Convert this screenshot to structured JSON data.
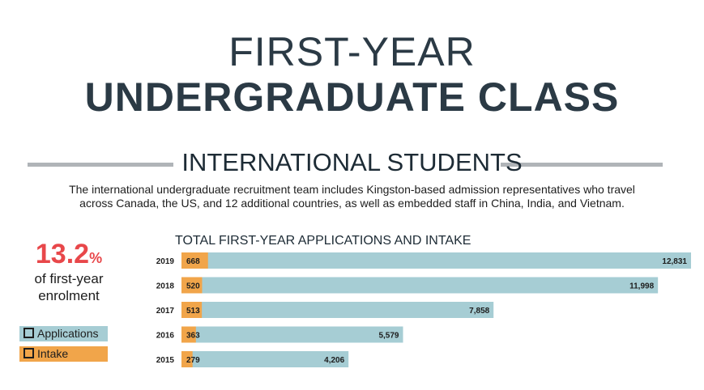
{
  "header": {
    "title_line1": "FIRST-YEAR",
    "title_line2": "UNDERGRADUATE CLASS"
  },
  "section": {
    "title": "INTERNATIONAL STUDENTS",
    "intro_line1": "The international undergraduate recruitment team includes Kingston-based admission representatives who travel",
    "intro_line2": "across Canada, the US, and 12 additional countries, as well as embedded staff in China, India, and Vietnam."
  },
  "stat": {
    "value": "13.2",
    "sign": "%",
    "caption_line1": "of first-year",
    "caption_line2": "enrolment"
  },
  "legend": {
    "applications": "Applications",
    "intake": "Intake"
  },
  "colors": {
    "applications": "#a6cdd4",
    "intake": "#f1a54a",
    "accent_red": "#e8474a",
    "title": "#2b3a45"
  },
  "chart_data": {
    "type": "bar",
    "orientation": "horizontal",
    "title": "TOTAL FIRST-YEAR APPLICATIONS AND INTAKE",
    "categories": [
      "2019",
      "2018",
      "2017",
      "2016",
      "2015"
    ],
    "series": [
      {
        "name": "Applications",
        "values": [
          12831,
          11998,
          7858,
          5579,
          4206
        ],
        "labels": [
          "12,831",
          "11,998",
          "7,858",
          "5,579",
          "4,206"
        ]
      },
      {
        "name": "Intake",
        "values": [
          668,
          520,
          513,
          363,
          279
        ],
        "labels": [
          "668",
          "520",
          "513",
          "363",
          "279"
        ]
      }
    ],
    "grid": false,
    "legend_position": "left"
  }
}
